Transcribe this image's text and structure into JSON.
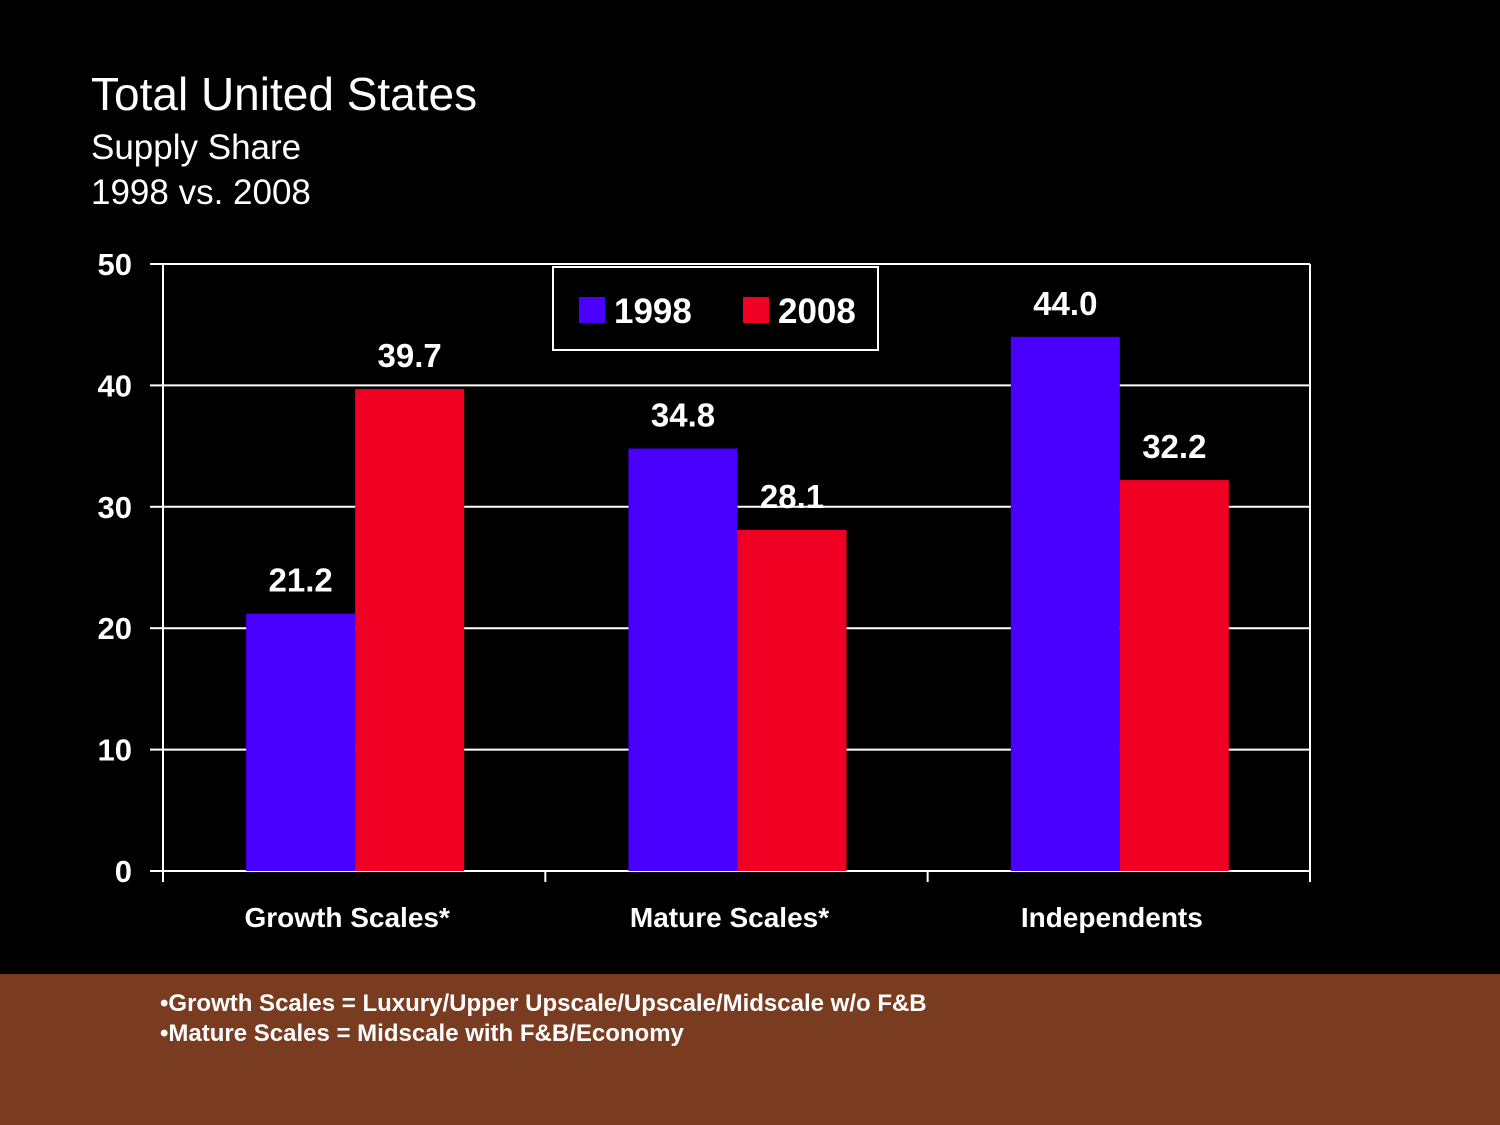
{
  "slide": {
    "title": "Total United States",
    "subtitle_line1": "Supply Share",
    "subtitle_line2": "1998 vs. 2008"
  },
  "footnotes": [
    "•Growth Scales = Luxury/Upper Upscale/Upscale/Midscale w/o F&B",
    "•Mature Scales = Midscale with F&B/Economy"
  ],
  "colors": {
    "background": "#000000",
    "footer": "#7a3c21",
    "series_1998": "#4a00ff",
    "series_2008": "#f00022",
    "grid": "#ffffff"
  },
  "chart_data": {
    "type": "bar",
    "categories": [
      "Growth Scales*",
      "Mature Scales*",
      "Independents"
    ],
    "series": [
      {
        "name": "1998",
        "values": [
          21.2,
          34.8,
          44.0
        ],
        "labels": [
          "21.2",
          "34.8",
          "44.0"
        ],
        "color": "#4a00ff"
      },
      {
        "name": "2008",
        "values": [
          39.7,
          28.1,
          32.2
        ],
        "labels": [
          "39.7",
          "28.1",
          "32.2"
        ],
        "color": "#f00022"
      }
    ],
    "ylim": [
      0,
      50
    ],
    "yticks": [
      0,
      10,
      20,
      30,
      40,
      50
    ],
    "grid": true,
    "legend": "top-center"
  }
}
